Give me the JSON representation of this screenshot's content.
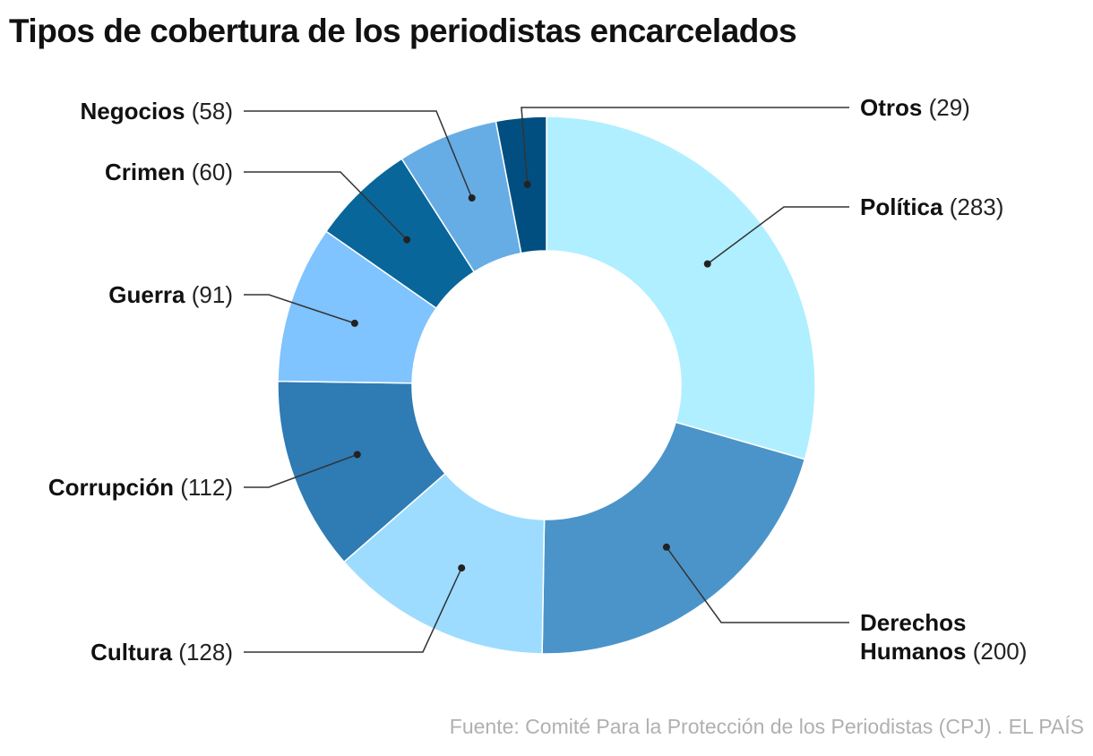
{
  "chart_data": {
    "type": "pie",
    "donut": true,
    "title": "Tipos de cobertura de los periodistas encarcelados",
    "source": "Fuente: Comité Para la Protección de los Periodistas (CPJ) . EL PAÍS",
    "slices": [
      {
        "name": "Política",
        "value": 283,
        "label_count": "(283)",
        "color": "#b0efff"
      },
      {
        "name": "Derechos Humanos",
        "name_lines": [
          "Derechos",
          "Humanos"
        ],
        "value": 200,
        "label_count": "(200)",
        "color": "#4b94c9"
      },
      {
        "name": "Cultura",
        "value": 128,
        "label_count": "(128)",
        "color": "#9ddcff"
      },
      {
        "name": "Corrupción",
        "value": 112,
        "label_count": "(112)",
        "color": "#2f7bb4"
      },
      {
        "name": "Guerra",
        "value": 91,
        "label_count": "(91)",
        "color": "#7fc3ff"
      },
      {
        "name": "Crimen",
        "value": 60,
        "label_count": "(60)",
        "color": "#08669a"
      },
      {
        "name": "Negocios",
        "value": 58,
        "label_count": "(58)",
        "color": "#66ade6"
      },
      {
        "name": "Otros",
        "value": 29,
        "label_count": "(29)",
        "color": "#014f80"
      }
    ]
  }
}
